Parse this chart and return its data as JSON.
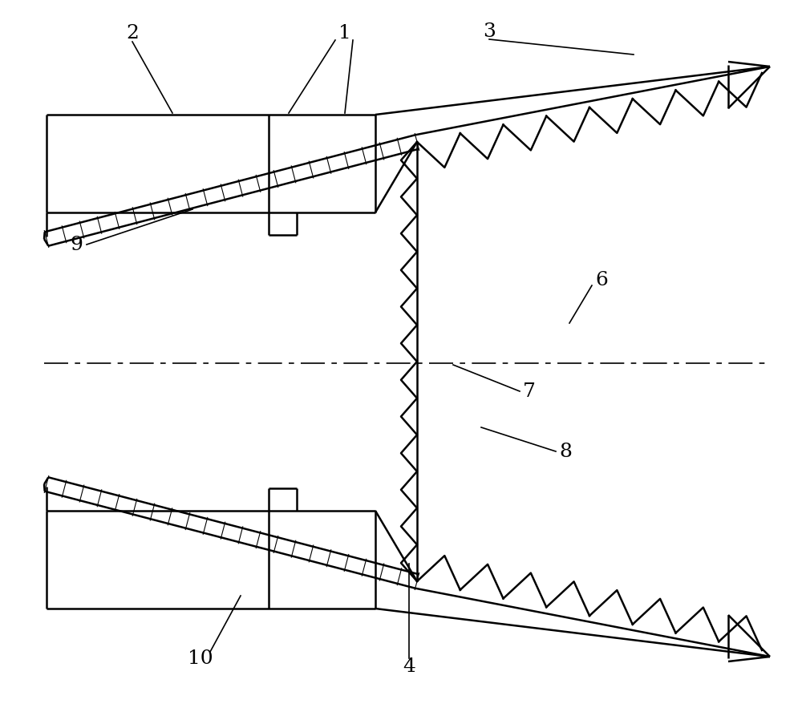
{
  "fig_width": 10.0,
  "fig_height": 9.04,
  "bg_color": "#ffffff",
  "line_color": "#000000",
  "lw": 1.8,
  "tlw": 1.2,
  "label_fs": 18
}
